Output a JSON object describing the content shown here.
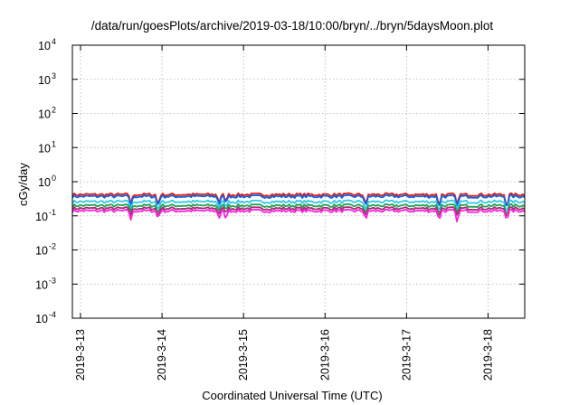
{
  "chart_data": {
    "type": "line",
    "title": "/data/run/goesPlots/archive/2019-03-18/10:00/bryn/../bryn/5daysMoon.plot",
    "xlabel": "Coordinated Universal Time (UTC)",
    "ylabel": "cGy/day",
    "y_scale": "log",
    "ylim": [
      0.0001,
      10000
    ],
    "xlim_days": [
      -0.1,
      5.45
    ],
    "y_ticks": [
      {
        "value": 0.0001,
        "base": "10",
        "exp": "-4"
      },
      {
        "value": 0.001,
        "base": "10",
        "exp": "-3"
      },
      {
        "value": 0.01,
        "base": "10",
        "exp": "-2"
      },
      {
        "value": 0.1,
        "base": "10",
        "exp": "-1"
      },
      {
        "value": 1,
        "base": "10",
        "exp": "0"
      },
      {
        "value": 10,
        "base": "10",
        "exp": "1"
      },
      {
        "value": 100,
        "base": "10",
        "exp": "2"
      },
      {
        "value": 1000,
        "base": "10",
        "exp": "3"
      },
      {
        "value": 10000,
        "base": "10",
        "exp": "4"
      }
    ],
    "x_ticks": [
      {
        "day": 0,
        "label": "2019-3-13"
      },
      {
        "day": 1,
        "label": "2019-3-14"
      },
      {
        "day": 2,
        "label": "2019-3-15"
      },
      {
        "day": 3,
        "label": "2019-3-16"
      },
      {
        "day": 4,
        "label": "2019-3-17"
      },
      {
        "day": 5,
        "label": "2019-3-18"
      }
    ],
    "grid": true,
    "legend": "none",
    "series": [
      {
        "color": "#e0201a",
        "level": 0.42,
        "dips": [
          [
            0.62,
            0.2
          ],
          [
            0.95,
            0.16
          ],
          [
            1.7,
            0.22
          ],
          [
            1.78,
            0.24
          ],
          [
            3.5,
            0.17
          ],
          [
            4.4,
            0.15
          ],
          [
            4.62,
            0.2
          ],
          [
            5.23,
            0.13
          ]
        ]
      },
      {
        "color": "#1560e0",
        "level": 0.37,
        "dips": [
          [
            0.62,
            0.18
          ],
          [
            0.95,
            0.14
          ],
          [
            1.7,
            0.2
          ],
          [
            1.78,
            0.22
          ],
          [
            3.5,
            0.15
          ],
          [
            4.4,
            0.13
          ],
          [
            4.62,
            0.18
          ],
          [
            5.23,
            0.12
          ]
        ]
      },
      {
        "color": "#30c8e8",
        "level": 0.26,
        "dips": [
          [
            0.62,
            0.15
          ],
          [
            0.95,
            0.12
          ],
          [
            1.7,
            0.16
          ],
          [
            1.78,
            0.17
          ],
          [
            3.5,
            0.12
          ],
          [
            4.4,
            0.11
          ],
          [
            4.62,
            0.15
          ],
          [
            5.23,
            0.1
          ]
        ]
      },
      {
        "color": "#20a050",
        "level": 0.2,
        "dips": [
          [
            0.62,
            0.13
          ],
          [
            0.95,
            0.1
          ],
          [
            1.7,
            0.14
          ],
          [
            1.78,
            0.15
          ],
          [
            3.5,
            0.1
          ],
          [
            4.4,
            0.095
          ],
          [
            4.62,
            0.12
          ],
          [
            5.23,
            0.085
          ]
        ]
      },
      {
        "color": "#a03070",
        "level": 0.165,
        "dips": [
          [
            0.62,
            0.1
          ],
          [
            0.95,
            0.085
          ],
          [
            1.7,
            0.11
          ],
          [
            1.78,
            0.12
          ],
          [
            3.5,
            0.085
          ],
          [
            4.4,
            0.08
          ],
          [
            4.62,
            0.1
          ],
          [
            5.23,
            0.075
          ]
        ]
      },
      {
        "color": "#ff20e0",
        "level": 0.14,
        "dips": [
          [
            0.62,
            0.07
          ],
          [
            0.95,
            0.075
          ],
          [
            1.7,
            0.08
          ],
          [
            1.78,
            0.07
          ],
          [
            3.5,
            0.065
          ],
          [
            4.4,
            0.065
          ],
          [
            4.62,
            0.06
          ],
          [
            5.23,
            0.065
          ]
        ]
      }
    ]
  }
}
